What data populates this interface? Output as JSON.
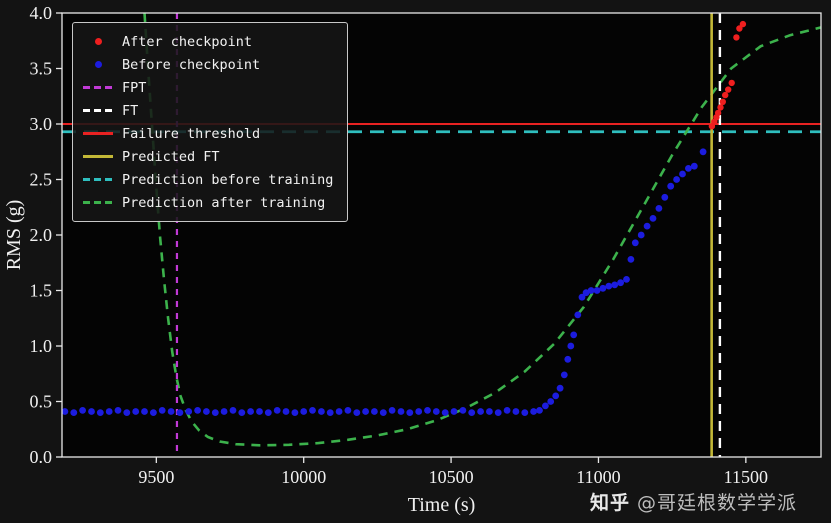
{
  "figure": {
    "background": "#131313",
    "plot_background": "#040404",
    "axis_color": "#e8e8e8",
    "text_color": "#f0f0f0",
    "watermark": {
      "brand": "知乎",
      "handle": "@哥廷根数学学派"
    }
  },
  "legend": {
    "items": [
      {
        "label": "After checkpoint",
        "color": "#ef1f1f",
        "marker": "dot"
      },
      {
        "label": "Before checkpoint",
        "color": "#1c1cdf",
        "marker": "dot"
      },
      {
        "label": "FPT",
        "color": "#c13ad6",
        "marker": "dashed"
      },
      {
        "label": "FT",
        "color": "#ffffff",
        "marker": "dashed"
      },
      {
        "label": "Failure threshold",
        "color": "#e82222",
        "marker": "solid"
      },
      {
        "label": "Predicted FT",
        "color": "#c3b837",
        "marker": "solid"
      },
      {
        "label": "Prediction before training",
        "color": "#2fbfbf",
        "marker": "dashed"
      },
      {
        "label": "Prediction after training",
        "color": "#3cb24c",
        "marker": "dashed"
      }
    ]
  },
  "chart_data": {
    "type": "scatter",
    "title": "",
    "xlabel": "Time (s)",
    "ylabel": "RMS (g)",
    "xlim": [
      9180,
      11755
    ],
    "ylim": [
      0,
      4
    ],
    "xticks": [
      9500,
      10000,
      10500,
      11000,
      11500
    ],
    "yticks": [
      0,
      0.5,
      1,
      1.5,
      2,
      2.5,
      3,
      3.5,
      4
    ],
    "grid": false,
    "legend_position": "upper-left",
    "series": [
      {
        "name": "Prediction before training",
        "type": "hline",
        "color": "#2fbfbf",
        "dash": [
          14,
          8
        ],
        "width": 2.8,
        "y": 2.93
      },
      {
        "name": "Failure threshold",
        "type": "hline",
        "color": "#e82222",
        "dash": null,
        "width": 2.0,
        "y": 3.0
      },
      {
        "name": "Prediction after training",
        "type": "line",
        "color": "#3cb24c",
        "dash": [
          9,
          7
        ],
        "width": 2.6,
        "points": [
          [
            9460,
            4.0
          ],
          [
            9472,
            3.5
          ],
          [
            9485,
            3.0
          ],
          [
            9498,
            2.5
          ],
          [
            9512,
            2.0
          ],
          [
            9526,
            1.6
          ],
          [
            9540,
            1.25
          ],
          [
            9554,
            0.95
          ],
          [
            9568,
            0.72
          ],
          [
            9582,
            0.55
          ],
          [
            9600,
            0.42
          ],
          [
            9620,
            0.32
          ],
          [
            9645,
            0.24
          ],
          [
            9675,
            0.18
          ],
          [
            9715,
            0.14
          ],
          [
            9770,
            0.115
          ],
          [
            9850,
            0.105
          ],
          [
            9950,
            0.11
          ],
          [
            10050,
            0.125
          ],
          [
            10150,
            0.155
          ],
          [
            10250,
            0.195
          ],
          [
            10350,
            0.25
          ],
          [
            10450,
            0.33
          ],
          [
            10550,
            0.44
          ],
          [
            10650,
            0.58
          ],
          [
            10750,
            0.77
          ],
          [
            10850,
            1.02
          ],
          [
            10950,
            1.35
          ],
          [
            11050,
            1.78
          ],
          [
            11150,
            2.25
          ],
          [
            11250,
            2.72
          ],
          [
            11350,
            3.15
          ],
          [
            11450,
            3.5
          ],
          [
            11550,
            3.7
          ],
          [
            11650,
            3.8
          ],
          [
            11755,
            3.87
          ]
        ]
      },
      {
        "name": "FPT",
        "type": "vline",
        "color": "#c13ad6",
        "dash": [
          6,
          6
        ],
        "width": 2.2,
        "x": 9570
      },
      {
        "name": "Predicted FT",
        "type": "vline",
        "color": "#c3b837",
        "dash": null,
        "width": 2.6,
        "x": 11384
      },
      {
        "name": "FT",
        "type": "vline",
        "color": "#ffffff",
        "dash": [
          10,
          7
        ],
        "width": 2.4,
        "x": 11412
      },
      {
        "name": "Before checkpoint",
        "type": "scatter",
        "color": "#1c1cdf",
        "size": 3.4,
        "points": [
          [
            9190,
            0.41
          ],
          [
            9220,
            0.4
          ],
          [
            9250,
            0.42
          ],
          [
            9280,
            0.41
          ],
          [
            9310,
            0.4
          ],
          [
            9340,
            0.41
          ],
          [
            9370,
            0.42
          ],
          [
            9400,
            0.4
          ],
          [
            9430,
            0.41
          ],
          [
            9460,
            0.41
          ],
          [
            9490,
            0.4
          ],
          [
            9520,
            0.42
          ],
          [
            9550,
            0.41
          ],
          [
            9580,
            0.4
          ],
          [
            9610,
            0.41
          ],
          [
            9640,
            0.42
          ],
          [
            9670,
            0.41
          ],
          [
            9700,
            0.4
          ],
          [
            9730,
            0.41
          ],
          [
            9760,
            0.42
          ],
          [
            9790,
            0.4
          ],
          [
            9820,
            0.41
          ],
          [
            9850,
            0.41
          ],
          [
            9880,
            0.4
          ],
          [
            9910,
            0.42
          ],
          [
            9940,
            0.41
          ],
          [
            9970,
            0.4
          ],
          [
            10000,
            0.41
          ],
          [
            10030,
            0.42
          ],
          [
            10060,
            0.41
          ],
          [
            10090,
            0.4
          ],
          [
            10120,
            0.41
          ],
          [
            10150,
            0.42
          ],
          [
            10180,
            0.4
          ],
          [
            10210,
            0.41
          ],
          [
            10240,
            0.41
          ],
          [
            10270,
            0.4
          ],
          [
            10300,
            0.42
          ],
          [
            10330,
            0.41
          ],
          [
            10360,
            0.4
          ],
          [
            10390,
            0.41
          ],
          [
            10420,
            0.42
          ],
          [
            10450,
            0.41
          ],
          [
            10480,
            0.4
          ],
          [
            10510,
            0.41
          ],
          [
            10540,
            0.42
          ],
          [
            10570,
            0.4
          ],
          [
            10600,
            0.41
          ],
          [
            10630,
            0.41
          ],
          [
            10660,
            0.4
          ],
          [
            10690,
            0.42
          ],
          [
            10720,
            0.41
          ],
          [
            10750,
            0.4
          ],
          [
            10780,
            0.41
          ],
          [
            10800,
            0.42
          ],
          [
            10820,
            0.46
          ],
          [
            10838,
            0.5
          ],
          [
            10855,
            0.55
          ],
          [
            10870,
            0.62
          ],
          [
            10884,
            0.74
          ],
          [
            10896,
            0.88
          ],
          [
            10906,
            1.0
          ],
          [
            10916,
            1.1
          ],
          [
            10930,
            1.28
          ],
          [
            10944,
            1.44
          ],
          [
            10958,
            1.48
          ],
          [
            10975,
            1.5
          ],
          [
            10995,
            1.5
          ],
          [
            11015,
            1.52
          ],
          [
            11035,
            1.54
          ],
          [
            11055,
            1.55
          ],
          [
            11075,
            1.57
          ],
          [
            11095,
            1.6
          ],
          [
            11110,
            1.78
          ],
          [
            11125,
            1.93
          ],
          [
            11145,
            2.0
          ],
          [
            11165,
            2.08
          ],
          [
            11185,
            2.15
          ],
          [
            11205,
            2.24
          ],
          [
            11225,
            2.34
          ],
          [
            11245,
            2.44
          ],
          [
            11265,
            2.5
          ],
          [
            11285,
            2.55
          ],
          [
            11305,
            2.6
          ],
          [
            11325,
            2.62
          ],
          [
            11355,
            2.75
          ]
        ]
      },
      {
        "name": "After checkpoint",
        "type": "scatter",
        "color": "#ef1f1f",
        "size": 3.2,
        "points": [
          [
            11385,
            2.98
          ],
          [
            11393,
            3.02
          ],
          [
            11400,
            3.06
          ],
          [
            11406,
            3.1
          ],
          [
            11414,
            3.15
          ],
          [
            11422,
            3.2
          ],
          [
            11430,
            3.26
          ],
          [
            11440,
            3.31
          ],
          [
            11452,
            3.37
          ],
          [
            11468,
            3.78
          ],
          [
            11478,
            3.86
          ],
          [
            11490,
            3.9
          ]
        ]
      }
    ]
  }
}
